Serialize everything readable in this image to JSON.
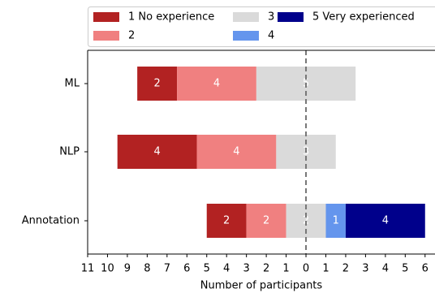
{
  "chart_data": {
    "type": "diverging-bar",
    "categories": [
      "ML",
      "NLP",
      "Annotation"
    ],
    "series": [
      {
        "name": "1 No experience",
        "color": "#b22222",
        "values": [
          2,
          4,
          2
        ]
      },
      {
        "name": "2",
        "color": "#f08080",
        "values": [
          4,
          4,
          2
        ]
      },
      {
        "name": "3",
        "color": "#dadada",
        "values": [
          5,
          3,
          2
        ]
      },
      {
        "name": "4",
        "color": "#6495ed",
        "values": [
          0,
          0,
          1
        ]
      },
      {
        "name": "5 Very experienced",
        "color": "#00008b",
        "values": [
          0,
          0,
          4
        ]
      }
    ],
    "xlabel": "Number of participants",
    "xlim": [
      -11,
      6.5
    ],
    "xticks": [
      {
        "value": -11,
        "label": "11"
      },
      {
        "value": -10,
        "label": "10"
      },
      {
        "value": -9,
        "label": "9"
      },
      {
        "value": -8,
        "label": "8"
      },
      {
        "value": -7,
        "label": "7"
      },
      {
        "value": -6,
        "label": "6"
      },
      {
        "value": -5,
        "label": "5"
      },
      {
        "value": -4,
        "label": "4"
      },
      {
        "value": -3,
        "label": "3"
      },
      {
        "value": -2,
        "label": "2"
      },
      {
        "value": -1,
        "label": "1"
      },
      0,
      1,
      2,
      3,
      4,
      5,
      6
    ]
  }
}
